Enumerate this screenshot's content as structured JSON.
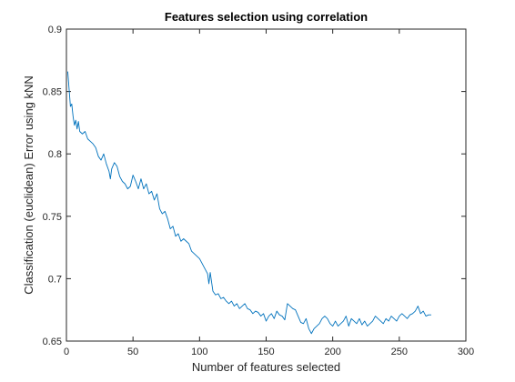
{
  "chart_data": {
    "type": "line",
    "title": "Features selection using correlation",
    "xlabel": "Number of features selected",
    "ylabel": "Classification (euclidean) Error using kNN",
    "xlim": [
      0,
      300
    ],
    "ylim": [
      0.65,
      0.9
    ],
    "xticks": [
      0,
      50,
      100,
      150,
      200,
      250,
      300
    ],
    "yticks": [
      0.65,
      0.7,
      0.75,
      0.8,
      0.85,
      0.9
    ],
    "xtick_labels": [
      "0",
      "50",
      "100",
      "150",
      "200",
      "250",
      "300"
    ],
    "ytick_labels": [
      "0.65",
      "0.7",
      "0.75",
      "0.8",
      "0.85",
      "0.9"
    ],
    "grid": false,
    "line_color": "#0072BD",
    "series": [
      {
        "x": [
          1,
          2,
          3,
          4,
          5,
          6,
          7,
          8,
          9,
          10,
          12,
          14,
          16,
          18,
          20,
          22,
          24,
          26,
          28,
          30,
          32,
          33,
          34,
          36,
          38,
          40,
          42,
          44,
          46,
          48,
          50,
          52,
          54,
          56,
          58,
          60,
          62,
          64,
          66,
          68,
          70,
          72,
          74,
          76,
          78,
          80,
          82,
          84,
          86,
          88,
          90,
          92,
          94,
          96,
          98,
          100,
          102,
          104,
          106,
          107,
          108,
          110,
          112,
          114,
          116,
          118,
          120,
          122,
          124,
          126,
          128,
          130,
          132,
          134,
          136,
          138,
          140,
          142,
          144,
          146,
          148,
          150,
          152,
          154,
          156,
          158,
          160,
          162,
          164,
          166,
          168,
          170,
          172,
          174,
          176,
          178,
          180,
          182,
          184,
          186,
          188,
          190,
          192,
          194,
          196,
          198,
          200,
          202,
          204,
          206,
          208,
          210,
          212,
          214,
          216,
          218,
          220,
          222,
          224,
          226,
          228,
          230,
          232,
          234,
          236,
          238,
          240,
          242,
          244,
          246,
          248,
          250,
          252,
          254,
          256,
          258,
          260,
          262,
          264,
          266,
          268,
          270,
          272,
          274
        ],
        "values": [
          0.866,
          0.852,
          0.838,
          0.84,
          0.83,
          0.823,
          0.827,
          0.82,
          0.826,
          0.818,
          0.816,
          0.818,
          0.812,
          0.81,
          0.808,
          0.805,
          0.798,
          0.795,
          0.8,
          0.792,
          0.786,
          0.78,
          0.788,
          0.793,
          0.79,
          0.782,
          0.778,
          0.776,
          0.772,
          0.774,
          0.783,
          0.778,
          0.772,
          0.78,
          0.772,
          0.776,
          0.768,
          0.77,
          0.763,
          0.768,
          0.756,
          0.752,
          0.754,
          0.748,
          0.74,
          0.742,
          0.734,
          0.736,
          0.73,
          0.732,
          0.73,
          0.728,
          0.722,
          0.72,
          0.718,
          0.716,
          0.712,
          0.708,
          0.704,
          0.696,
          0.705,
          0.69,
          0.687,
          0.688,
          0.684,
          0.685,
          0.682,
          0.68,
          0.682,
          0.678,
          0.68,
          0.676,
          0.678,
          0.68,
          0.676,
          0.675,
          0.672,
          0.674,
          0.673,
          0.67,
          0.672,
          0.666,
          0.67,
          0.672,
          0.668,
          0.674,
          0.671,
          0.67,
          0.667,
          0.68,
          0.678,
          0.676,
          0.675,
          0.67,
          0.665,
          0.664,
          0.668,
          0.66,
          0.656,
          0.66,
          0.662,
          0.664,
          0.668,
          0.67,
          0.668,
          0.664,
          0.662,
          0.666,
          0.662,
          0.664,
          0.666,
          0.67,
          0.662,
          0.668,
          0.666,
          0.664,
          0.668,
          0.663,
          0.666,
          0.662,
          0.664,
          0.666,
          0.67,
          0.668,
          0.666,
          0.664,
          0.668,
          0.666,
          0.67,
          0.668,
          0.666,
          0.67,
          0.672,
          0.67,
          0.668,
          0.671,
          0.672,
          0.674,
          0.678,
          0.672,
          0.674,
          0.67,
          0.671,
          0.671
        ]
      }
    ]
  }
}
